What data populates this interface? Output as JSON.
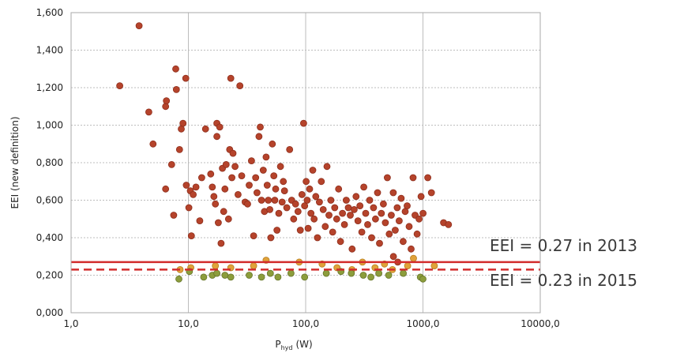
{
  "chart_data": {
    "type": "scatter",
    "title": "",
    "xlabel": "P",
    "xlabel_sub": "hyd",
    "xlabel_unit": "(W)",
    "ylabel": "EEI (new definition)",
    "xscale": "log",
    "xlim": [
      1,
      10000
    ],
    "ylim": [
      0,
      1.6
    ],
    "grid": true,
    "legend": "none",
    "xticks": [
      {
        "value": 1,
        "label": "1,0"
      },
      {
        "value": 10,
        "label": "10,0"
      },
      {
        "value": 100,
        "label": "100,0"
      },
      {
        "value": 1000,
        "label": "1000,0"
      },
      {
        "value": 10000,
        "label": "10000,0"
      }
    ],
    "yticks": [
      {
        "value": 0,
        "label": "0,000"
      },
      {
        "value": 0.2,
        "label": "0,200"
      },
      {
        "value": 0.4,
        "label": "0,400"
      },
      {
        "value": 0.6,
        "label": "0,600"
      },
      {
        "value": 0.8,
        "label": "0,800"
      },
      {
        "value": 1.0,
        "label": "1,000"
      },
      {
        "value": 1.2,
        "label": "1,200"
      },
      {
        "value": 1.4,
        "label": "1,400"
      },
      {
        "value": 1.6,
        "label": "1,600"
      }
    ],
    "reference_lines": [
      {
        "y": 0.27,
        "style": "solid",
        "color": "#d22c2c",
        "label": "EEI = 0.27 in 2013"
      },
      {
        "y": 0.23,
        "style": "dashed",
        "color": "#d22c2c",
        "label": "EEI = 0.23 in 2015"
      }
    ],
    "series": [
      {
        "color": "#b5432b",
        "points": [
          [
            2.6,
            1.21
          ],
          [
            3.8,
            1.53
          ],
          [
            4.6,
            1.07
          ],
          [
            5.0,
            0.9
          ],
          [
            6.4,
            1.1
          ],
          [
            6.5,
            1.13
          ],
          [
            6.4,
            0.66
          ],
          [
            7.2,
            0.79
          ],
          [
            7.5,
            0.52
          ],
          [
            7.8,
            1.3
          ],
          [
            7.9,
            1.19
          ],
          [
            8.4,
            0.87
          ],
          [
            8.7,
            0.98
          ],
          [
            9.0,
            1.01
          ],
          [
            9.5,
            1.25
          ],
          [
            9.6,
            0.68
          ],
          [
            10.1,
            0.56
          ],
          [
            10.4,
            0.65
          ],
          [
            10.6,
            0.41
          ],
          [
            11.0,
            0.63
          ],
          [
            11.6,
            0.67
          ],
          [
            12.5,
            0.49
          ],
          [
            13.0,
            0.72
          ],
          [
            14.0,
            0.98
          ],
          [
            15.5,
            0.74
          ],
          [
            16.0,
            0.67
          ],
          [
            16.5,
            0.62
          ],
          [
            17.0,
            0.58
          ],
          [
            17.5,
            0.94
          ],
          [
            17.5,
            1.01
          ],
          [
            18.0,
            0.48
          ],
          [
            18.5,
            0.99
          ],
          [
            19.0,
            0.37
          ],
          [
            19.5,
            0.77
          ],
          [
            20.0,
            0.54
          ],
          [
            20.5,
            0.66
          ],
          [
            21.0,
            0.79
          ],
          [
            22.0,
            0.5
          ],
          [
            22.5,
            0.87
          ],
          [
            23.0,
            1.25
          ],
          [
            23.5,
            0.72
          ],
          [
            24.0,
            0.85
          ],
          [
            25.0,
            0.78
          ],
          [
            26.5,
            0.63
          ],
          [
            27.5,
            1.21
          ],
          [
            28.5,
            0.73
          ],
          [
            30.5,
            0.59
          ],
          [
            32.0,
            0.58
          ],
          [
            33.0,
            0.68
          ],
          [
            34.5,
            0.81
          ],
          [
            36.0,
            0.41
          ],
          [
            37.5,
            0.72
          ],
          [
            38.5,
            0.64
          ],
          [
            40.0,
            0.94
          ],
          [
            41.0,
            0.99
          ],
          [
            42.0,
            0.6
          ],
          [
            43.5,
            0.76
          ],
          [
            44.5,
            0.54
          ],
          [
            46.0,
            0.83
          ],
          [
            47.0,
            0.68
          ],
          [
            48.0,
            0.6
          ],
          [
            49.5,
            0.55
          ],
          [
            50.5,
            0.4
          ],
          [
            52.0,
            0.9
          ],
          [
            53.5,
            0.73
          ],
          [
            54.5,
            0.6
          ],
          [
            55.5,
            0.66
          ],
          [
            57.0,
            0.44
          ],
          [
            59.0,
            0.53
          ],
          [
            61.0,
            0.78
          ],
          [
            63.0,
            0.59
          ],
          [
            64.5,
            0.7
          ],
          [
            66.0,
            0.65
          ],
          [
            69.0,
            0.56
          ],
          [
            73.0,
            0.87
          ],
          [
            76.0,
            0.6
          ],
          [
            79.0,
            0.5
          ],
          [
            82.0,
            0.58
          ],
          [
            86.0,
            0.54
          ],
          [
            90.0,
            0.44
          ],
          [
            93.0,
            0.63
          ],
          [
            96.0,
            1.01
          ],
          [
            98.0,
            0.57
          ],
          [
            101.0,
            0.7
          ],
          [
            103.0,
            0.6
          ],
          [
            105.0,
            0.45
          ],
          [
            108.0,
            0.66
          ],
          [
            111.0,
            0.53
          ],
          [
            115.0,
            0.76
          ],
          [
            118.0,
            0.5
          ],
          [
            122.0,
            0.62
          ],
          [
            126.0,
            0.4
          ],
          [
            131.0,
            0.59
          ],
          [
            136.0,
            0.7
          ],
          [
            141.0,
            0.55
          ],
          [
            147.0,
            0.46
          ],
          [
            152.0,
            0.78
          ],
          [
            158.0,
            0.52
          ],
          [
            164.0,
            0.6
          ],
          [
            170.0,
            0.43
          ],
          [
            177.0,
            0.56
          ],
          [
            184.0,
            0.5
          ],
          [
            191.0,
            0.66
          ],
          [
            198.0,
            0.38
          ],
          [
            206.0,
            0.53
          ],
          [
            214.0,
            0.47
          ],
          [
            222.0,
            0.6
          ],
          [
            231.0,
            0.56
          ],
          [
            240.0,
            0.52
          ],
          [
            249.0,
            0.34
          ],
          [
            259.0,
            0.55
          ],
          [
            269.0,
            0.62
          ],
          [
            279.0,
            0.49
          ],
          [
            290.0,
            0.57
          ],
          [
            301.0,
            0.43
          ],
          [
            313.0,
            0.67
          ],
          [
            325.0,
            0.53
          ],
          [
            338.0,
            0.47
          ],
          [
            351.0,
            0.6
          ],
          [
            365.0,
            0.4
          ],
          [
            379.0,
            0.56
          ],
          [
            394.0,
            0.5
          ],
          [
            410.0,
            0.64
          ],
          [
            426.0,
            0.37
          ],
          [
            442.0,
            0.53
          ],
          [
            460.0,
            0.58
          ],
          [
            478.0,
            0.48
          ],
          [
            497.0,
            0.72
          ],
          [
            516.0,
            0.42
          ],
          [
            537.0,
            0.52
          ],
          [
            558.0,
            0.64
          ],
          [
            580.0,
            0.44
          ],
          [
            603.0,
            0.56
          ],
          [
            627.0,
            0.49
          ],
          [
            652.0,
            0.61
          ],
          [
            678.0,
            0.38
          ],
          [
            705.0,
            0.54
          ],
          [
            733.0,
            0.57
          ],
          [
            762.0,
            0.46
          ],
          [
            793.0,
            0.34
          ],
          [
            824.0,
            0.72
          ],
          [
            857.0,
            0.52
          ],
          [
            891.0,
            0.42
          ],
          [
            927.0,
            0.5
          ],
          [
            964.0,
            0.62
          ],
          [
            1002.0,
            0.53
          ],
          [
            1100.0,
            0.72
          ],
          [
            1180.0,
            0.64
          ],
          [
            1500.0,
            0.48
          ],
          [
            1650.0,
            0.47
          ],
          [
            560.0,
            0.3
          ],
          [
            610.0,
            0.27
          ]
        ]
      },
      {
        "color": "#e0a23a",
        "points": [
          [
            8.5,
            0.23
          ],
          [
            10.5,
            0.24
          ],
          [
            17.0,
            0.25
          ],
          [
            23.0,
            0.24
          ],
          [
            36.0,
            0.25
          ],
          [
            46.0,
            0.28
          ],
          [
            88.0,
            0.27
          ],
          [
            138.0,
            0.26
          ],
          [
            185.0,
            0.24
          ],
          [
            248.0,
            0.23
          ],
          [
            305.0,
            0.27
          ],
          [
            390.0,
            0.24
          ],
          [
            470.0,
            0.26
          ],
          [
            550.0,
            0.23
          ],
          [
            740.0,
            0.25
          ],
          [
            830.0,
            0.29
          ],
          [
            1250.0,
            0.25
          ]
        ]
      },
      {
        "color": "#8c9d3c",
        "points": [
          [
            8.3,
            0.18
          ],
          [
            10.2,
            0.22
          ],
          [
            13.5,
            0.19
          ],
          [
            16.0,
            0.2
          ],
          [
            17.5,
            0.21
          ],
          [
            20.5,
            0.2
          ],
          [
            23.0,
            0.19
          ],
          [
            33.0,
            0.2
          ],
          [
            42.0,
            0.19
          ],
          [
            50.0,
            0.21
          ],
          [
            58.0,
            0.19
          ],
          [
            75.0,
            0.21
          ],
          [
            98.0,
            0.19
          ],
          [
            150.0,
            0.21
          ],
          [
            200.0,
            0.22
          ],
          [
            245.0,
            0.21
          ],
          [
            310.0,
            0.2
          ],
          [
            360.0,
            0.19
          ],
          [
            420.0,
            0.21
          ],
          [
            510.0,
            0.2
          ],
          [
            680.0,
            0.21
          ],
          [
            950.0,
            0.19
          ],
          [
            1000.0,
            0.18
          ]
        ]
      }
    ]
  }
}
